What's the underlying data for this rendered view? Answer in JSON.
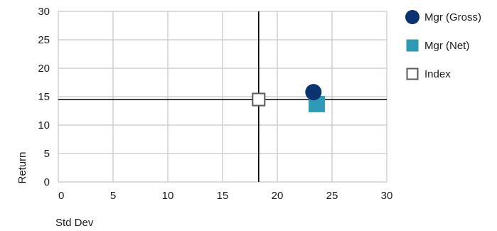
{
  "chart_data": {
    "type": "scatter",
    "xlabel": "Std Dev",
    "ylabel": "Return",
    "xlim": [
      0,
      30
    ],
    "ylim": [
      0,
      30
    ],
    "x_ticks": [
      0,
      5,
      10,
      15,
      20,
      25,
      30
    ],
    "y_ticks": [
      0,
      5,
      10,
      15,
      20,
      25,
      30
    ],
    "x_tick_labels": [
      "0",
      "5",
      "10",
      "15",
      "20",
      "25",
      "30"
    ],
    "y_tick_labels": [
      "0",
      "5",
      "10",
      "15",
      "20",
      "25",
      "30"
    ],
    "grid": true,
    "legend_position": "right",
    "reference_lines": {
      "x": 18.3,
      "y": 14.5
    },
    "series": [
      {
        "name": "Mgr (Gross)",
        "marker": "circle",
        "color": "#0b3370",
        "x": 23.3,
        "y": 15.8
      },
      {
        "name": "Mgr (Net)",
        "marker": "square",
        "color": "#2e9ab6",
        "x": 23.6,
        "y": 13.7
      },
      {
        "name": "Index",
        "marker": "hollow-square",
        "color": "#595959",
        "x": 18.3,
        "y": 14.5
      }
    ]
  }
}
